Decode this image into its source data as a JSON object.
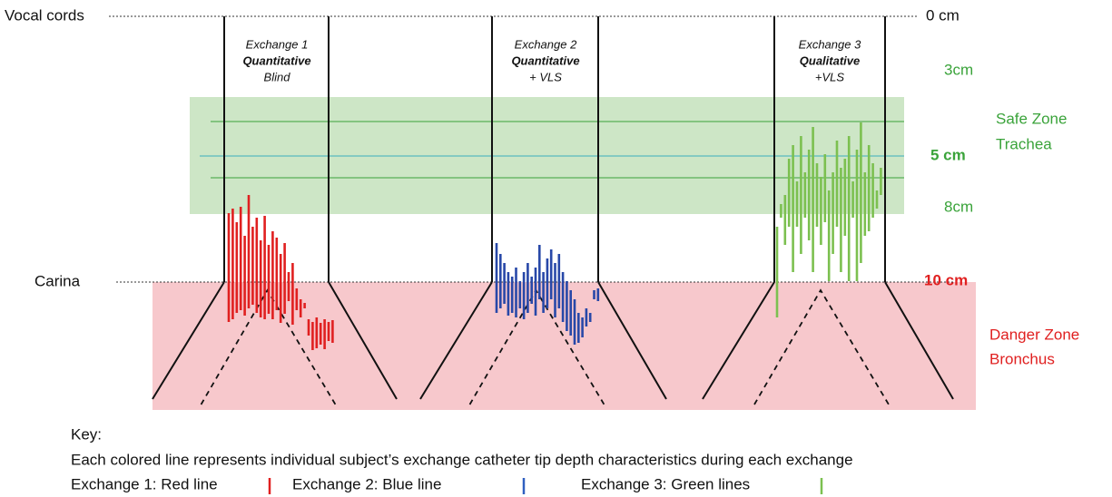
{
  "landmarks": {
    "top": "Vocal cords",
    "bottom": "Carina"
  },
  "depth_labels": {
    "top": "0 cm",
    "safe_upper": "3cm",
    "safe_mid": "5 cm",
    "safe_lower": "8cm",
    "carina": "10 cm"
  },
  "zones": {
    "safe": [
      "Safe Zone",
      "Trachea"
    ],
    "danger": [
      "Danger Zone",
      "Bronchus"
    ]
  },
  "exchanges": [
    {
      "name": "Exchange  1",
      "method": "Quantitative",
      "condition": "Blind"
    },
    {
      "name": "Exchange 2",
      "method": "Quantitative",
      "condition": "+ VLS"
    },
    {
      "name": "Exchange 3",
      "method": "Qualitative",
      "condition": "+VLS"
    }
  ],
  "key": {
    "title": "Key:",
    "description": "Each colored line represents individual subject’s exchange catheter tip depth characteristics during each exchange",
    "items": [
      "Exchange 1: Red line",
      "Exchange 2: Blue line",
      "Exchange 3: Green lines"
    ]
  }
}
